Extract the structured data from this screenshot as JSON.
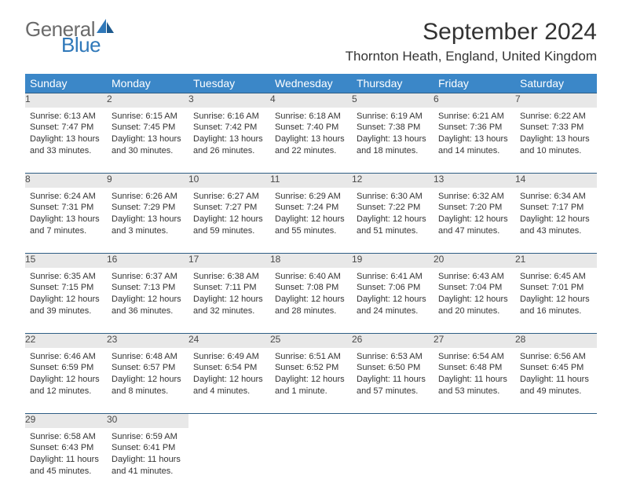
{
  "logo": {
    "text1": "General",
    "text2": "Blue"
  },
  "title": {
    "month": "September 2024",
    "location": "Thornton Heath, England, United Kingdom"
  },
  "weekdays": [
    "Sunday",
    "Monday",
    "Tuesday",
    "Wednesday",
    "Thursday",
    "Friday",
    "Saturday"
  ],
  "colors": {
    "header_bg": "#3b87c8",
    "daynum_bg": "#e8e8e8",
    "row_border": "#2f5e85",
    "logo_gray": "#6b6b6b",
    "logo_blue": "#2f78b9"
  },
  "weeks": [
    [
      {
        "num": "1",
        "sunrise": "Sunrise: 6:13 AM",
        "sunset": "Sunset: 7:47 PM",
        "day1": "Daylight: 13 hours",
        "day2": "and 33 minutes."
      },
      {
        "num": "2",
        "sunrise": "Sunrise: 6:15 AM",
        "sunset": "Sunset: 7:45 PM",
        "day1": "Daylight: 13 hours",
        "day2": "and 30 minutes."
      },
      {
        "num": "3",
        "sunrise": "Sunrise: 6:16 AM",
        "sunset": "Sunset: 7:42 PM",
        "day1": "Daylight: 13 hours",
        "day2": "and 26 minutes."
      },
      {
        "num": "4",
        "sunrise": "Sunrise: 6:18 AM",
        "sunset": "Sunset: 7:40 PM",
        "day1": "Daylight: 13 hours",
        "day2": "and 22 minutes."
      },
      {
        "num": "5",
        "sunrise": "Sunrise: 6:19 AM",
        "sunset": "Sunset: 7:38 PM",
        "day1": "Daylight: 13 hours",
        "day2": "and 18 minutes."
      },
      {
        "num": "6",
        "sunrise": "Sunrise: 6:21 AM",
        "sunset": "Sunset: 7:36 PM",
        "day1": "Daylight: 13 hours",
        "day2": "and 14 minutes."
      },
      {
        "num": "7",
        "sunrise": "Sunrise: 6:22 AM",
        "sunset": "Sunset: 7:33 PM",
        "day1": "Daylight: 13 hours",
        "day2": "and 10 minutes."
      }
    ],
    [
      {
        "num": "8",
        "sunrise": "Sunrise: 6:24 AM",
        "sunset": "Sunset: 7:31 PM",
        "day1": "Daylight: 13 hours",
        "day2": "and 7 minutes."
      },
      {
        "num": "9",
        "sunrise": "Sunrise: 6:26 AM",
        "sunset": "Sunset: 7:29 PM",
        "day1": "Daylight: 13 hours",
        "day2": "and 3 minutes."
      },
      {
        "num": "10",
        "sunrise": "Sunrise: 6:27 AM",
        "sunset": "Sunset: 7:27 PM",
        "day1": "Daylight: 12 hours",
        "day2": "and 59 minutes."
      },
      {
        "num": "11",
        "sunrise": "Sunrise: 6:29 AM",
        "sunset": "Sunset: 7:24 PM",
        "day1": "Daylight: 12 hours",
        "day2": "and 55 minutes."
      },
      {
        "num": "12",
        "sunrise": "Sunrise: 6:30 AM",
        "sunset": "Sunset: 7:22 PM",
        "day1": "Daylight: 12 hours",
        "day2": "and 51 minutes."
      },
      {
        "num": "13",
        "sunrise": "Sunrise: 6:32 AM",
        "sunset": "Sunset: 7:20 PM",
        "day1": "Daylight: 12 hours",
        "day2": "and 47 minutes."
      },
      {
        "num": "14",
        "sunrise": "Sunrise: 6:34 AM",
        "sunset": "Sunset: 7:17 PM",
        "day1": "Daylight: 12 hours",
        "day2": "and 43 minutes."
      }
    ],
    [
      {
        "num": "15",
        "sunrise": "Sunrise: 6:35 AM",
        "sunset": "Sunset: 7:15 PM",
        "day1": "Daylight: 12 hours",
        "day2": "and 39 minutes."
      },
      {
        "num": "16",
        "sunrise": "Sunrise: 6:37 AM",
        "sunset": "Sunset: 7:13 PM",
        "day1": "Daylight: 12 hours",
        "day2": "and 36 minutes."
      },
      {
        "num": "17",
        "sunrise": "Sunrise: 6:38 AM",
        "sunset": "Sunset: 7:11 PM",
        "day1": "Daylight: 12 hours",
        "day2": "and 32 minutes."
      },
      {
        "num": "18",
        "sunrise": "Sunrise: 6:40 AM",
        "sunset": "Sunset: 7:08 PM",
        "day1": "Daylight: 12 hours",
        "day2": "and 28 minutes."
      },
      {
        "num": "19",
        "sunrise": "Sunrise: 6:41 AM",
        "sunset": "Sunset: 7:06 PM",
        "day1": "Daylight: 12 hours",
        "day2": "and 24 minutes."
      },
      {
        "num": "20",
        "sunrise": "Sunrise: 6:43 AM",
        "sunset": "Sunset: 7:04 PM",
        "day1": "Daylight: 12 hours",
        "day2": "and 20 minutes."
      },
      {
        "num": "21",
        "sunrise": "Sunrise: 6:45 AM",
        "sunset": "Sunset: 7:01 PM",
        "day1": "Daylight: 12 hours",
        "day2": "and 16 minutes."
      }
    ],
    [
      {
        "num": "22",
        "sunrise": "Sunrise: 6:46 AM",
        "sunset": "Sunset: 6:59 PM",
        "day1": "Daylight: 12 hours",
        "day2": "and 12 minutes."
      },
      {
        "num": "23",
        "sunrise": "Sunrise: 6:48 AM",
        "sunset": "Sunset: 6:57 PM",
        "day1": "Daylight: 12 hours",
        "day2": "and 8 minutes."
      },
      {
        "num": "24",
        "sunrise": "Sunrise: 6:49 AM",
        "sunset": "Sunset: 6:54 PM",
        "day1": "Daylight: 12 hours",
        "day2": "and 4 minutes."
      },
      {
        "num": "25",
        "sunrise": "Sunrise: 6:51 AM",
        "sunset": "Sunset: 6:52 PM",
        "day1": "Daylight: 12 hours",
        "day2": "and 1 minute."
      },
      {
        "num": "26",
        "sunrise": "Sunrise: 6:53 AM",
        "sunset": "Sunset: 6:50 PM",
        "day1": "Daylight: 11 hours",
        "day2": "and 57 minutes."
      },
      {
        "num": "27",
        "sunrise": "Sunrise: 6:54 AM",
        "sunset": "Sunset: 6:48 PM",
        "day1": "Daylight: 11 hours",
        "day2": "and 53 minutes."
      },
      {
        "num": "28",
        "sunrise": "Sunrise: 6:56 AM",
        "sunset": "Sunset: 6:45 PM",
        "day1": "Daylight: 11 hours",
        "day2": "and 49 minutes."
      }
    ],
    [
      {
        "num": "29",
        "sunrise": "Sunrise: 6:58 AM",
        "sunset": "Sunset: 6:43 PM",
        "day1": "Daylight: 11 hours",
        "day2": "and 45 minutes."
      },
      {
        "num": "30",
        "sunrise": "Sunrise: 6:59 AM",
        "sunset": "Sunset: 6:41 PM",
        "day1": "Daylight: 11 hours",
        "day2": "and 41 minutes."
      },
      null,
      null,
      null,
      null,
      null
    ]
  ]
}
